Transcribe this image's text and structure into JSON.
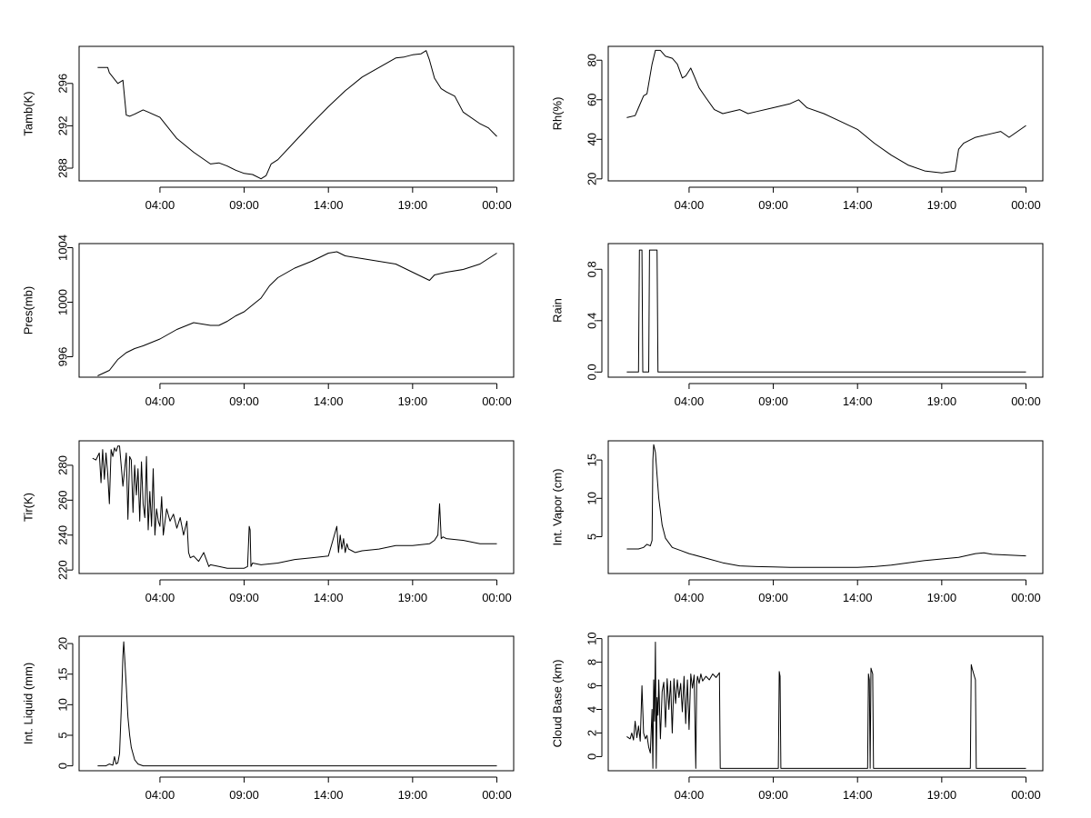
{
  "chart_data": [
    {
      "id": "tamb",
      "type": "line",
      "ylabel": "Tamb(K)",
      "xlabel": "",
      "x_ticks": [
        "04:00",
        "09:00",
        "14:00",
        "19:00",
        "00:00"
      ],
      "x_tick_hours": [
        4,
        9,
        14,
        19,
        24
      ],
      "xlim": [
        -0.8,
        25
      ],
      "ylim": [
        286.8,
        299.5
      ],
      "y_ticks": [
        288,
        292,
        296
      ],
      "y_tick_labels": [
        "288",
        "292",
        "296"
      ],
      "series": [
        {
          "name": "Tamb",
          "x": [
            0.3,
            0.9,
            1.0,
            1.5,
            1.8,
            2.0,
            2.2,
            2.5,
            3.0,
            3.3,
            4.0,
            5.0,
            6.0,
            7.0,
            7.5,
            8.0,
            8.5,
            9.0,
            9.5,
            10.0,
            10.3,
            10.6,
            11.0,
            12.0,
            13.0,
            14.0,
            15.0,
            16.0,
            17.0,
            18.0,
            18.5,
            19.0,
            19.5,
            19.8,
            20.0,
            20.3,
            20.7,
            21.0,
            21.5,
            22.0,
            23.0,
            23.5,
            24.0
          ],
          "y": [
            297.5,
            297.5,
            297.0,
            296.0,
            296.3,
            293.0,
            292.9,
            293.1,
            293.5,
            293.3,
            292.8,
            290.8,
            289.5,
            288.4,
            288.5,
            288.2,
            287.8,
            287.5,
            287.4,
            287.0,
            287.3,
            288.4,
            288.8,
            290.5,
            292.2,
            293.8,
            295.3,
            296.6,
            297.5,
            298.4,
            298.5,
            298.7,
            298.8,
            299.1,
            298.2,
            296.5,
            295.5,
            295.2,
            294.8,
            293.3,
            292.2,
            291.8,
            291.0
          ]
        }
      ]
    },
    {
      "id": "rh",
      "type": "line",
      "ylabel": "Rh(%)",
      "xlabel": "",
      "x_ticks": [
        "04:00",
        "09:00",
        "14:00",
        "19:00",
        "00:00"
      ],
      "x_tick_hours": [
        4,
        9,
        14,
        19,
        24
      ],
      "xlim": [
        -0.8,
        25
      ],
      "ylim": [
        19,
        87
      ],
      "y_ticks": [
        20,
        40,
        60,
        80
      ],
      "y_tick_labels": [
        "20",
        "40",
        "60",
        "80"
      ],
      "series": [
        {
          "name": "Rh",
          "x": [
            0.3,
            0.8,
            1.0,
            1.3,
            1.5,
            1.8,
            2.0,
            2.3,
            2.6,
            3.0,
            3.3,
            3.6,
            3.8,
            4.1,
            4.3,
            4.6,
            5.0,
            5.5,
            6.0,
            7.0,
            7.5,
            8.0,
            9.0,
            10.0,
            10.5,
            11.0,
            12.0,
            13.0,
            14.0,
            15.0,
            16.0,
            17.0,
            18.0,
            19.0,
            19.8,
            20.0,
            20.3,
            21.0,
            22.0,
            22.5,
            23.0,
            24.0
          ],
          "y": [
            51,
            52,
            56,
            62,
            63,
            78,
            85,
            85,
            82,
            81,
            78,
            71,
            72,
            76,
            72,
            66,
            61,
            55,
            53,
            55,
            53,
            54,
            56,
            58,
            60,
            56,
            53,
            49,
            45,
            38,
            32,
            27,
            24,
            23,
            24,
            35,
            38,
            41,
            43,
            44,
            41,
            47
          ]
        }
      ]
    },
    {
      "id": "pres",
      "type": "line",
      "ylabel": "Pres(mb)",
      "xlabel": "",
      "x_ticks": [
        "04:00",
        "09:00",
        "14:00",
        "19:00",
        "00:00"
      ],
      "x_tick_hours": [
        4,
        9,
        14,
        19,
        24
      ],
      "xlim": [
        -0.8,
        25
      ],
      "ylim": [
        994.5,
        1004.3
      ],
      "y_ticks": [
        996,
        1000,
        1004
      ],
      "y_tick_labels": [
        "996",
        "1000",
        "1004"
      ],
      "series": [
        {
          "name": "Pres",
          "x": [
            0.3,
            1.0,
            1.5,
            2.0,
            2.5,
            3.0,
            4.0,
            5.0,
            6.0,
            7.0,
            7.5,
            8.0,
            8.5,
            9.0,
            9.5,
            10.0,
            10.5,
            11.0,
            12.0,
            13.0,
            14.0,
            14.5,
            15.0,
            16.0,
            17.0,
            18.0,
            19.0,
            19.5,
            20.0,
            20.3,
            21.0,
            22.0,
            23.0,
            24.0
          ],
          "y": [
            994.6,
            995.0,
            995.8,
            996.3,
            996.6,
            996.8,
            997.3,
            998.0,
            998.5,
            998.3,
            998.3,
            998.6,
            999.0,
            999.3,
            999.8,
            1000.3,
            1001.2,
            1001.8,
            1002.5,
            1003.0,
            1003.6,
            1003.7,
            1003.4,
            1003.2,
            1003.0,
            1002.8,
            1002.2,
            1001.9,
            1001.6,
            1002.0,
            1002.2,
            1002.4,
            1002.8,
            1003.6
          ]
        }
      ]
    },
    {
      "id": "rain",
      "type": "line",
      "ylabel": "Rain",
      "xlabel": "",
      "x_ticks": [
        "04:00",
        "09:00",
        "14:00",
        "19:00",
        "00:00"
      ],
      "x_tick_hours": [
        4,
        9,
        14,
        19,
        24
      ],
      "xlim": [
        -0.8,
        25
      ],
      "ylim": [
        -0.04,
        1.0
      ],
      "y_ticks": [
        0.0,
        0.4,
        0.8
      ],
      "y_tick_labels": [
        "0.0",
        "0.4",
        "0.8"
      ],
      "series": [
        {
          "name": "Rain",
          "x": [
            0.3,
            1.0,
            1.05,
            1.2,
            1.25,
            1.6,
            1.65,
            2.1,
            2.15,
            24.0
          ],
          "y": [
            0,
            0,
            0.95,
            0.95,
            0,
            0,
            0.95,
            0.95,
            0,
            0
          ]
        }
      ]
    },
    {
      "id": "tir",
      "type": "line",
      "ylabel": "Tir(K)",
      "xlabel": "",
      "x_ticks": [
        "04:00",
        "09:00",
        "14:00",
        "19:00",
        "00:00"
      ],
      "x_tick_hours": [
        4,
        9,
        14,
        19,
        24
      ],
      "xlim": [
        -0.8,
        25
      ],
      "ylim": [
        218,
        294
      ],
      "y_ticks": [
        220,
        240,
        260,
        280
      ],
      "y_tick_labels": [
        "220",
        "240",
        "260",
        "280"
      ],
      "series": [
        {
          "name": "Tir",
          "x": [
            0.0,
            0.2,
            0.4,
            0.5,
            0.6,
            0.7,
            0.8,
            0.9,
            1.0,
            1.1,
            1.2,
            1.3,
            1.4,
            1.5,
            1.6,
            1.8,
            2.0,
            2.1,
            2.2,
            2.3,
            2.4,
            2.5,
            2.6,
            2.7,
            2.8,
            2.9,
            3.0,
            3.1,
            3.2,
            3.3,
            3.4,
            3.5,
            3.6,
            3.7,
            3.8,
            3.9,
            4.0,
            4.1,
            4.2,
            4.4,
            4.6,
            4.8,
            5.0,
            5.2,
            5.4,
            5.6,
            5.7,
            5.8,
            6.0,
            6.3,
            6.6,
            6.9,
            7.0,
            7.5,
            8.0,
            8.5,
            9.0,
            9.2,
            9.3,
            9.35,
            9.4,
            9.5,
            10.0,
            11.0,
            12.0,
            13.0,
            14.0,
            14.5,
            14.6,
            14.7,
            14.8,
            14.9,
            15.0,
            15.1,
            15.2,
            15.4,
            15.6,
            16.0,
            17.0,
            18.0,
            19.0,
            20.0,
            20.3,
            20.5,
            20.6,
            20.7,
            20.8,
            21.0,
            22.0,
            23.0,
            24.0
          ],
          "y": [
            284,
            283,
            287,
            270,
            289,
            272,
            287,
            275,
            258,
            289,
            285,
            290,
            288,
            291,
            291,
            268,
            287,
            249,
            285,
            283,
            253,
            280,
            263,
            278,
            248,
            282,
            258,
            250,
            285,
            243,
            265,
            245,
            278,
            240,
            255,
            248,
            245,
            262,
            240,
            255,
            248,
            252,
            244,
            250,
            240,
            248,
            230,
            227,
            228,
            225,
            230,
            222,
            223,
            222,
            221,
            221,
            221,
            222,
            245,
            243,
            222,
            224,
            223,
            224,
            226,
            227,
            228,
            245,
            230,
            240,
            232,
            238,
            230,
            235,
            232,
            231,
            230,
            231,
            232,
            234,
            234,
            235,
            237,
            240,
            258,
            238,
            239,
            238,
            237,
            235,
            235
          ]
        }
      ]
    },
    {
      "id": "vapor",
      "type": "line",
      "ylabel": "Int. Vapor (cm)",
      "xlabel": "",
      "x_ticks": [
        "04:00",
        "09:00",
        "14:00",
        "19:00",
        "00:00"
      ],
      "x_tick_hours": [
        4,
        9,
        14,
        19,
        24
      ],
      "xlim": [
        -0.8,
        25
      ],
      "ylim": [
        0.2,
        17.5
      ],
      "y_ticks": [
        5,
        10,
        15
      ],
      "y_tick_labels": [
        "5",
        "10",
        "15"
      ],
      "series": [
        {
          "name": "Int. Vapor",
          "x": [
            0.3,
            1.0,
            1.3,
            1.5,
            1.7,
            1.8,
            1.85,
            1.9,
            2.0,
            2.1,
            2.2,
            2.4,
            2.6,
            3.0,
            3.5,
            4.0,
            5.0,
            6.0,
            7.0,
            8.0,
            9.0,
            10.0,
            12.0,
            14.0,
            15.0,
            16.0,
            17.0,
            18.0,
            19.0,
            20.0,
            21.0,
            21.5,
            22.0,
            23.0,
            24.0
          ],
          "y": [
            3.4,
            3.4,
            3.6,
            4.0,
            3.8,
            4.5,
            15.0,
            17.0,
            16.0,
            13.0,
            10.0,
            6.5,
            4.8,
            3.6,
            3.2,
            2.8,
            2.2,
            1.6,
            1.2,
            1.1,
            1.05,
            1.0,
            1.0,
            1.0,
            1.1,
            1.3,
            1.6,
            1.9,
            2.1,
            2.3,
            2.8,
            2.9,
            2.7,
            2.6,
            2.5
          ]
        }
      ]
    },
    {
      "id": "liquid",
      "type": "line",
      "ylabel": "Int. Liquid (mm)",
      "xlabel": "",
      "x_ticks": [
        "04:00",
        "09:00",
        "14:00",
        "19:00",
        "00:00"
      ],
      "x_tick_hours": [
        4,
        9,
        14,
        19,
        24
      ],
      "xlim": [
        -0.8,
        25
      ],
      "ylim": [
        -0.8,
        21.2
      ],
      "y_ticks": [
        0,
        5,
        10,
        15,
        20
      ],
      "y_tick_labels": [
        "0",
        "5",
        "10",
        "15",
        "20"
      ],
      "series": [
        {
          "name": "Int. Liquid",
          "x": [
            0.3,
            0.8,
            1.0,
            1.2,
            1.3,
            1.4,
            1.5,
            1.6,
            1.7,
            1.8,
            1.85,
            1.9,
            2.0,
            2.1,
            2.2,
            2.3,
            2.5,
            2.7,
            3.0,
            24.0
          ],
          "y": [
            0.0,
            0.0,
            0.3,
            0.1,
            1.5,
            0.3,
            0.5,
            2.0,
            9.0,
            18.0,
            20.3,
            18.0,
            13.0,
            8.0,
            5.0,
            3.0,
            1.0,
            0.3,
            0.0,
            0.0
          ]
        }
      ]
    },
    {
      "id": "cloud_base",
      "type": "line",
      "ylabel": "Cloud Base (km)",
      "xlabel": "",
      "x_ticks": [
        "04:00",
        "09:00",
        "14:00",
        "19:00",
        "00:00"
      ],
      "x_tick_hours": [
        4,
        9,
        14,
        19,
        24
      ],
      "xlim": [
        -0.8,
        25
      ],
      "ylim": [
        -1.2,
        10.2
      ],
      "y_ticks": [
        0,
        2,
        4,
        6,
        8,
        10
      ],
      "y_tick_labels": [
        "0",
        "2",
        "4",
        "6",
        "8",
        "10"
      ],
      "series": [
        {
          "name": "Cloud Base",
          "x": [
            0.3,
            0.5,
            0.6,
            0.7,
            0.8,
            0.9,
            1.0,
            1.1,
            1.2,
            1.3,
            1.4,
            1.5,
            1.6,
            1.7,
            1.8,
            1.85,
            1.9,
            1.95,
            2.0,
            2.05,
            2.1,
            2.15,
            2.2,
            2.3,
            2.4,
            2.5,
            2.6,
            2.7,
            2.8,
            2.9,
            3.0,
            3.1,
            3.2,
            3.3,
            3.4,
            3.5,
            3.6,
            3.7,
            3.8,
            3.9,
            4.0,
            4.1,
            4.2,
            4.3,
            4.4,
            4.45,
            4.5,
            4.6,
            4.7,
            4.8,
            5.0,
            5.2,
            5.4,
            5.6,
            5.8,
            5.85,
            9.3,
            9.35,
            9.4,
            9.45,
            14.6,
            14.65,
            14.7,
            14.75,
            14.8,
            14.9,
            14.95,
            15.0,
            15.05,
            20.7,
            20.75,
            20.8,
            20.9,
            21.0,
            21.05,
            24.0
          ],
          "y": [
            1.7,
            1.5,
            2.0,
            1.4,
            3.0,
            1.6,
            2.6,
            1.3,
            6.0,
            2.0,
            1.5,
            1.8,
            0.8,
            0.3,
            4.0,
            -1.0,
            6.5,
            3.0,
            9.7,
            -1.0,
            5.0,
            3.5,
            6.5,
            1.5,
            5.5,
            6.3,
            2.5,
            6.6,
            4.0,
            6.4,
            2.0,
            6.6,
            4.5,
            6.5,
            5.0,
            6.2,
            3.8,
            6.8,
            2.8,
            6.5,
            2.3,
            7.0,
            5.8,
            6.9,
            -1.0,
            6.2,
            6.8,
            6.2,
            7.0,
            6.4,
            6.8,
            6.5,
            7.0,
            6.7,
            7.1,
            -1.0,
            -1.0,
            7.2,
            6.8,
            -1.0,
            -1.0,
            7.0,
            6.5,
            -1.0,
            7.5,
            7.0,
            -1.0,
            -1.0,
            -1.0,
            -1.0,
            7.8,
            7.5,
            7.0,
            6.5,
            -1.0,
            -1.0
          ]
        }
      ]
    }
  ]
}
